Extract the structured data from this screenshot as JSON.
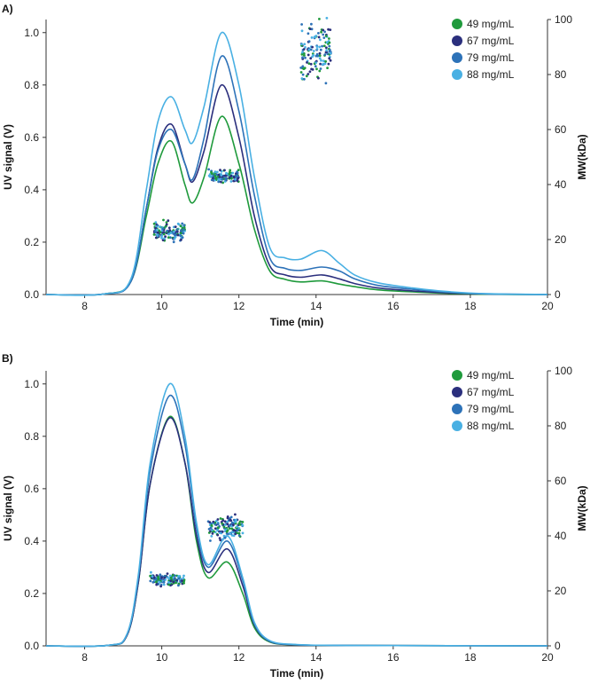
{
  "colors": {
    "c49": "#1f9a3c",
    "c67": "#2b2f7d",
    "c79": "#2d72b8",
    "c88": "#49b0e3"
  },
  "chart_data": [
    {
      "type": "line",
      "panel": "A)",
      "xlabel": "Time (min)",
      "ylabel": "UV signal (V)",
      "y2label": "MW(kDa)",
      "xlim": [
        7,
        20
      ],
      "ylim": [
        0,
        1.05
      ],
      "y2lim": [
        0,
        100
      ],
      "xticks": [
        "8",
        "10",
        "12",
        "14",
        "16",
        "18",
        "20"
      ],
      "yticks": [
        "0.0",
        "0.2",
        "0.4",
        "0.6",
        "0.8",
        "1.0"
      ],
      "y2ticks": [
        "0",
        "20",
        "40",
        "60",
        "80",
        "100"
      ],
      "legend": [
        "49 mg/mL",
        "67 mg/mL",
        "79 mg/mL",
        "88 mg/mL"
      ],
      "series": [
        {
          "name": "49 mg/mL",
          "x": [
            7,
            8.5,
            9.2,
            9.6,
            9.9,
            10.25,
            10.6,
            10.8,
            11.1,
            11.55,
            12.0,
            12.4,
            12.8,
            13.2,
            13.6,
            14.15,
            14.6,
            15.0,
            15.6,
            16.5,
            17.5,
            18.5,
            20
          ],
          "values": [
            0,
            0.002,
            0.05,
            0.3,
            0.5,
            0.585,
            0.42,
            0.35,
            0.45,
            0.68,
            0.5,
            0.25,
            0.09,
            0.058,
            0.048,
            0.052,
            0.04,
            0.03,
            0.018,
            0.01,
            0.004,
            0.001,
            0
          ]
        },
        {
          "name": "67 mg/mL",
          "x": [
            7,
            8.5,
            9.2,
            9.6,
            9.9,
            10.25,
            10.6,
            10.8,
            11.1,
            11.55,
            12.0,
            12.4,
            12.8,
            13.2,
            13.6,
            14.15,
            14.6,
            15.0,
            15.6,
            16.5,
            17.5,
            18.5,
            20
          ],
          "values": [
            0,
            0.002,
            0.05,
            0.33,
            0.56,
            0.65,
            0.5,
            0.43,
            0.55,
            0.8,
            0.6,
            0.3,
            0.11,
            0.075,
            0.066,
            0.075,
            0.06,
            0.042,
            0.025,
            0.014,
            0.006,
            0.002,
            0
          ]
        },
        {
          "name": "79 mg/mL",
          "x": [
            7,
            8.5,
            9.2,
            9.6,
            9.9,
            10.25,
            10.6,
            10.8,
            11.1,
            11.55,
            12.0,
            12.4,
            12.8,
            13.2,
            13.6,
            14.15,
            14.6,
            15.0,
            15.6,
            16.5,
            17.5,
            18.5,
            20
          ],
          "values": [
            0,
            0.002,
            0.05,
            0.33,
            0.55,
            0.63,
            0.5,
            0.44,
            0.6,
            0.91,
            0.7,
            0.38,
            0.14,
            0.1,
            0.092,
            0.105,
            0.09,
            0.06,
            0.035,
            0.02,
            0.008,
            0.002,
            0
          ]
        },
        {
          "name": "88 mg/mL",
          "x": [
            7,
            8.5,
            9.2,
            9.6,
            9.9,
            10.25,
            10.6,
            10.8,
            11.1,
            11.55,
            12.0,
            12.4,
            12.8,
            13.2,
            13.6,
            14.15,
            14.6,
            15.0,
            15.6,
            16.5,
            17.5,
            18.5,
            20
          ],
          "values": [
            0,
            0.002,
            0.06,
            0.4,
            0.66,
            0.755,
            0.63,
            0.58,
            0.72,
            1.0,
            0.8,
            0.45,
            0.18,
            0.14,
            0.135,
            0.168,
            0.12,
            0.075,
            0.045,
            0.025,
            0.01,
            0.003,
            0
          ]
        }
      ],
      "mw_clusters": [
        {
          "x_range": [
            9.8,
            10.6
          ],
          "mw_center": 23,
          "mw_spread": 2.5
        },
        {
          "x_range": [
            11.2,
            12.0
          ],
          "mw_center": 43,
          "mw_spread": 1.5
        },
        {
          "x_range": [
            13.6,
            14.4
          ],
          "mw_center": 88,
          "mw_spread": 8
        }
      ]
    },
    {
      "type": "line",
      "panel": "B)",
      "xlabel": "Time (min)",
      "ylabel": "UV signal (V)",
      "y2label": "MW(kDa)",
      "xlim": [
        7,
        20
      ],
      "ylim": [
        0,
        1.05
      ],
      "y2lim": [
        0,
        100
      ],
      "xticks": [
        "8",
        "10",
        "12",
        "14",
        "16",
        "18",
        "20"
      ],
      "yticks": [
        "0.0",
        "0.2",
        "0.4",
        "0.6",
        "0.8",
        "1.0"
      ],
      "y2ticks": [
        "0",
        "20",
        "40",
        "60",
        "80",
        "100"
      ],
      "legend": [
        "49 mg/mL",
        "67 mg/mL",
        "79 mg/mL",
        "88 mg/mL"
      ],
      "series": [
        {
          "name": "49 mg/mL",
          "x": [
            7,
            8.6,
            9.1,
            9.4,
            9.7,
            10.2,
            10.6,
            10.9,
            11.2,
            11.7,
            12.1,
            12.4,
            12.8,
            13.5,
            14.5,
            16,
            20
          ],
          "values": [
            0,
            0.002,
            0.04,
            0.25,
            0.62,
            0.875,
            0.7,
            0.4,
            0.26,
            0.32,
            0.2,
            0.07,
            0.015,
            0.004,
            0.002,
            0.001,
            0
          ]
        },
        {
          "name": "67 mg/mL",
          "x": [
            7,
            8.6,
            9.1,
            9.4,
            9.7,
            10.2,
            10.6,
            10.9,
            11.2,
            11.7,
            12.1,
            12.4,
            12.8,
            13.5,
            14.5,
            16,
            20
          ],
          "values": [
            0,
            0.002,
            0.04,
            0.25,
            0.62,
            0.87,
            0.7,
            0.42,
            0.28,
            0.37,
            0.23,
            0.08,
            0.017,
            0.004,
            0.002,
            0.001,
            0
          ]
        },
        {
          "name": "79 mg/mL",
          "x": [
            7,
            8.6,
            9.1,
            9.4,
            9.7,
            10.2,
            10.6,
            10.9,
            11.2,
            11.7,
            12.1,
            12.4,
            12.8,
            13.5,
            14.5,
            16,
            20
          ],
          "values": [
            0,
            0.002,
            0.045,
            0.27,
            0.67,
            0.955,
            0.77,
            0.45,
            0.3,
            0.4,
            0.25,
            0.085,
            0.018,
            0.004,
            0.002,
            0.001,
            0
          ]
        },
        {
          "name": "88 mg/mL",
          "x": [
            7,
            8.6,
            9.1,
            9.4,
            9.7,
            10.2,
            10.6,
            10.9,
            11.2,
            11.7,
            12.1,
            12.4,
            12.8,
            13.5,
            14.5,
            16,
            20
          ],
          "values": [
            0,
            0.002,
            0.045,
            0.28,
            0.7,
            1.0,
            0.8,
            0.47,
            0.31,
            0.42,
            0.26,
            0.09,
            0.02,
            0.005,
            0.002,
            0.001,
            0
          ]
        }
      ],
      "mw_clusters": [
        {
          "x_range": [
            9.7,
            10.6
          ],
          "mw_center": 24,
          "mw_spread": 1.5
        },
        {
          "x_range": [
            11.2,
            12.1
          ],
          "mw_center": 43,
          "mw_spread": 3
        }
      ]
    }
  ]
}
